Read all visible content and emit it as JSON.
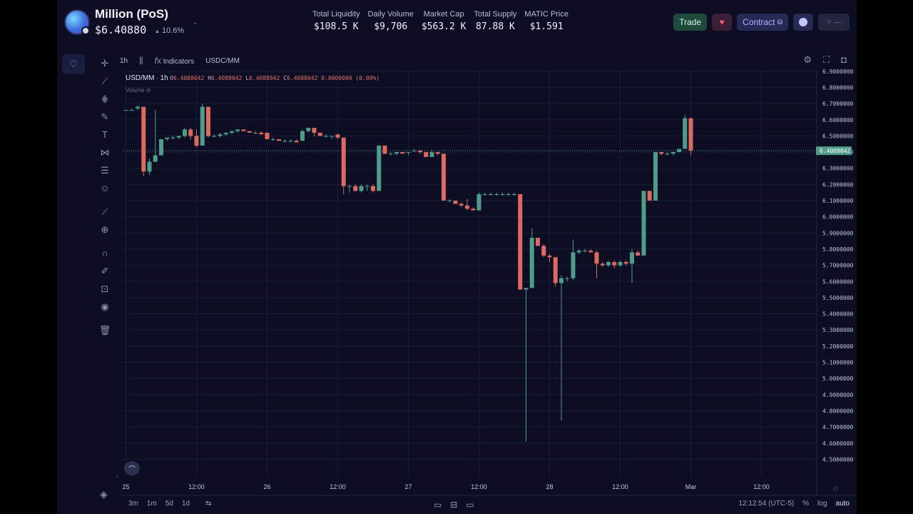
{
  "token": {
    "name": "Million (PoS)",
    "price": "$6.40880",
    "change": "10.6%",
    "change_arrow": "▲",
    "caret": "⌄"
  },
  "stats": [
    {
      "label": "Total Liquidity",
      "value": "$108.5 K"
    },
    {
      "label": "Daily Volume",
      "value": "$9,706"
    },
    {
      "label": "Market Cap",
      "value": "$563.2 K"
    },
    {
      "label": "Total Supply",
      "value": "87.88 K"
    },
    {
      "label": "MATIC Price",
      "value": "$1.591"
    }
  ],
  "header_buttons": {
    "trade": "Trade",
    "contract": "Contract",
    "contract_icon": "⧉",
    "heart": "♥",
    "more": "✧ —"
  },
  "toolbar": {
    "interval": "1h",
    "indicators": "Indicators",
    "symbol": "USDC/MM"
  },
  "legend": {
    "symbol": "USD/MM",
    "interval": "1h",
    "o": "6.4088042",
    "h": "6.4088042",
    "l": "6.4088042",
    "c": "6.4088042",
    "change": "0.0000000 (0.00%)",
    "volume": "Volume"
  },
  "bottom": {
    "ranges": [
      "3m",
      "1m",
      "5d",
      "1d"
    ],
    "time": "12:12:54 (UTC-5)",
    "pct": "%",
    "log": "log",
    "auto": "auto"
  },
  "colors": {
    "up": "#4f9c8a",
    "down": "#dc6a60",
    "grid": "#1b1d3a",
    "last_price_bg": "#4f9c8a"
  },
  "chart_data": {
    "type": "candlestick",
    "ylim": [
      4.45,
      6.95
    ],
    "y_ticks": [
      "6.9000000",
      "6.8000000",
      "6.7000000",
      "6.6000000",
      "6.5000000",
      "6.4000000",
      "6.3000000",
      "6.2000000",
      "6.1000000",
      "6.0000000",
      "5.9000000",
      "5.8000000",
      "5.7000000",
      "5.6000000",
      "5.5000000",
      "5.4000000",
      "5.3000000",
      "5.2000000",
      "5.1000000",
      "5.0000000",
      "4.9000000",
      "4.8000000",
      "4.7000000",
      "4.6000000",
      "4.5000000"
    ],
    "last_price": 6.4088042,
    "last_price_label": "6.4088042",
    "x_labels": [
      "25",
      "12:00",
      "26",
      "12:00",
      "27",
      "12:00",
      "28",
      "12:00",
      "Mar",
      "12:00"
    ],
    "x_label_times": [
      0,
      12,
      24,
      36,
      48,
      60,
      72,
      84,
      96,
      108
    ],
    "candles": [
      {
        "t": 0,
        "o": 6.66,
        "h": 6.66,
        "l": 6.66,
        "c": 6.66
      },
      {
        "t": 1,
        "o": 6.66,
        "h": 6.67,
        "l": 6.66,
        "c": 6.66
      },
      {
        "t": 2,
        "o": 6.67,
        "h": 6.69,
        "l": 6.66,
        "c": 6.68
      },
      {
        "t": 3,
        "o": 6.68,
        "h": 6.68,
        "l": 6.25,
        "c": 6.28
      },
      {
        "t": 4,
        "o": 6.28,
        "h": 6.36,
        "l": 6.26,
        "c": 6.34
      },
      {
        "t": 5,
        "o": 6.34,
        "h": 6.66,
        "l": 6.34,
        "c": 6.38
      },
      {
        "t": 6,
        "o": 6.38,
        "h": 6.48,
        "l": 6.38,
        "c": 6.48
      },
      {
        "t": 7,
        "o": 6.48,
        "h": 6.49,
        "l": 6.47,
        "c": 6.49
      },
      {
        "t": 8,
        "o": 6.49,
        "h": 6.5,
        "l": 6.48,
        "c": 6.49
      },
      {
        "t": 9,
        "o": 6.49,
        "h": 6.5,
        "l": 6.48,
        "c": 6.5
      },
      {
        "t": 10,
        "o": 6.5,
        "h": 6.55,
        "l": 6.49,
        "c": 6.54
      },
      {
        "t": 11,
        "o": 6.54,
        "h": 6.55,
        "l": 6.48,
        "c": 6.5
      },
      {
        "t": 12,
        "o": 6.5,
        "h": 6.54,
        "l": 6.43,
        "c": 6.44
      },
      {
        "t": 13,
        "o": 6.44,
        "h": 6.7,
        "l": 6.44,
        "c": 6.68
      },
      {
        "t": 14,
        "o": 6.68,
        "h": 6.68,
        "l": 6.49,
        "c": 6.5
      },
      {
        "t": 15,
        "o": 6.5,
        "h": 6.51,
        "l": 6.49,
        "c": 6.5
      },
      {
        "t": 16,
        "o": 6.5,
        "h": 6.52,
        "l": 6.49,
        "c": 6.51
      },
      {
        "t": 17,
        "o": 6.51,
        "h": 6.52,
        "l": 6.5,
        "c": 6.52
      },
      {
        "t": 18,
        "o": 6.52,
        "h": 6.53,
        "l": 6.51,
        "c": 6.53
      },
      {
        "t": 19,
        "o": 6.53,
        "h": 6.54,
        "l": 6.52,
        "c": 6.54
      },
      {
        "t": 20,
        "o": 6.54,
        "h": 6.54,
        "l": 6.53,
        "c": 6.53
      },
      {
        "t": 21,
        "o": 6.53,
        "h": 6.53,
        "l": 6.52,
        "c": 6.52
      },
      {
        "t": 22,
        "o": 6.52,
        "h": 6.53,
        "l": 6.51,
        "c": 6.52
      },
      {
        "t": 23,
        "o": 6.52,
        "h": 6.53,
        "l": 6.51,
        "c": 6.51
      },
      {
        "t": 24,
        "o": 6.52,
        "h": 6.52,
        "l": 6.48,
        "c": 6.48
      },
      {
        "t": 25,
        "o": 6.48,
        "h": 6.49,
        "l": 6.47,
        "c": 6.48
      },
      {
        "t": 26,
        "o": 6.48,
        "h": 6.48,
        "l": 6.47,
        "c": 6.47
      },
      {
        "t": 27,
        "o": 6.47,
        "h": 6.48,
        "l": 6.46,
        "c": 6.47
      },
      {
        "t": 28,
        "o": 6.47,
        "h": 6.48,
        "l": 6.46,
        "c": 6.47
      },
      {
        "t": 29,
        "o": 6.47,
        "h": 6.48,
        "l": 6.46,
        "c": 6.46
      },
      {
        "t": 30,
        "o": 6.47,
        "h": 6.54,
        "l": 6.47,
        "c": 6.53
      },
      {
        "t": 31,
        "o": 6.53,
        "h": 6.55,
        "l": 6.52,
        "c": 6.55
      },
      {
        "t": 32,
        "o": 6.55,
        "h": 6.55,
        "l": 6.5,
        "c": 6.52
      },
      {
        "t": 33,
        "o": 6.52,
        "h": 6.52,
        "l": 6.5,
        "c": 6.5
      },
      {
        "t": 34,
        "o": 6.5,
        "h": 6.51,
        "l": 6.49,
        "c": 6.5
      },
      {
        "t": 35,
        "o": 6.5,
        "h": 6.5,
        "l": 6.48,
        "c": 6.5
      },
      {
        "t": 36,
        "o": 6.51,
        "h": 6.51,
        "l": 6.48,
        "c": 6.49
      },
      {
        "t": 37,
        "o": 6.49,
        "h": 6.49,
        "l": 6.14,
        "c": 6.19
      },
      {
        "t": 38,
        "o": 6.19,
        "h": 6.2,
        "l": 6.15,
        "c": 6.19
      },
      {
        "t": 39,
        "o": 6.19,
        "h": 6.2,
        "l": 6.16,
        "c": 6.16
      },
      {
        "t": 40,
        "o": 6.16,
        "h": 6.2,
        "l": 6.15,
        "c": 6.19
      },
      {
        "t": 41,
        "o": 6.19,
        "h": 6.2,
        "l": 6.16,
        "c": 6.19
      },
      {
        "t": 42,
        "o": 6.19,
        "h": 6.2,
        "l": 6.15,
        "c": 6.16
      },
      {
        "t": 43,
        "o": 6.16,
        "h": 6.44,
        "l": 6.16,
        "c": 6.44
      },
      {
        "t": 44,
        "o": 6.44,
        "h": 6.44,
        "l": 6.39,
        "c": 6.39
      },
      {
        "t": 45,
        "o": 6.39,
        "h": 6.4,
        "l": 6.38,
        "c": 6.39
      },
      {
        "t": 46,
        "o": 6.39,
        "h": 6.4,
        "l": 6.38,
        "c": 6.4
      },
      {
        "t": 47,
        "o": 6.4,
        "h": 6.4,
        "l": 6.39,
        "c": 6.39
      },
      {
        "t": 48,
        "o": 6.4,
        "h": 6.4,
        "l": 6.38,
        "c": 6.4
      },
      {
        "t": 49,
        "o": 6.41,
        "h": 6.42,
        "l": 6.4,
        "c": 6.41
      },
      {
        "t": 50,
        "o": 6.41,
        "h": 6.41,
        "l": 6.39,
        "c": 6.4
      },
      {
        "t": 51,
        "o": 6.4,
        "h": 6.4,
        "l": 6.37,
        "c": 6.37
      },
      {
        "t": 52,
        "o": 6.37,
        "h": 6.41,
        "l": 6.37,
        "c": 6.4
      },
      {
        "t": 53,
        "o": 6.4,
        "h": 6.4,
        "l": 6.38,
        "c": 6.39
      },
      {
        "t": 54,
        "o": 6.39,
        "h": 6.39,
        "l": 6.1,
        "c": 6.1
      },
      {
        "t": 55,
        "o": 6.1,
        "h": 6.11,
        "l": 6.09,
        "c": 6.1
      },
      {
        "t": 56,
        "o": 6.1,
        "h": 6.1,
        "l": 6.08,
        "c": 6.08
      },
      {
        "t": 57,
        "o": 6.08,
        "h": 6.09,
        "l": 6.06,
        "c": 6.07
      },
      {
        "t": 58,
        "o": 6.07,
        "h": 6.11,
        "l": 6.04,
        "c": 6.05
      },
      {
        "t": 59,
        "o": 6.05,
        "h": 6.06,
        "l": 6.04,
        "c": 6.04
      },
      {
        "t": 60,
        "o": 6.04,
        "h": 6.15,
        "l": 6.04,
        "c": 6.14
      },
      {
        "t": 61,
        "o": 6.14,
        "h": 6.15,
        "l": 6.13,
        "c": 6.14
      },
      {
        "t": 62,
        "o": 6.14,
        "h": 6.15,
        "l": 6.13,
        "c": 6.14
      },
      {
        "t": 63,
        "o": 6.14,
        "h": 6.15,
        "l": 6.13,
        "c": 6.14
      },
      {
        "t": 64,
        "o": 6.14,
        "h": 6.15,
        "l": 6.13,
        "c": 6.14
      },
      {
        "t": 65,
        "o": 6.14,
        "h": 6.15,
        "l": 6.13,
        "c": 6.14
      },
      {
        "t": 66,
        "o": 6.14,
        "h": 6.15,
        "l": 6.13,
        "c": 6.14
      },
      {
        "t": 67,
        "o": 6.14,
        "h": 6.14,
        "l": 5.55,
        "c": 5.55
      },
      {
        "t": 68,
        "o": 5.55,
        "h": 5.55,
        "l": 4.61,
        "c": 5.56
      },
      {
        "t": 69,
        "o": 5.56,
        "h": 5.93,
        "l": 5.56,
        "c": 5.87
      },
      {
        "t": 70,
        "o": 5.87,
        "h": 5.87,
        "l": 5.82,
        "c": 5.82
      },
      {
        "t": 71,
        "o": 5.82,
        "h": 5.83,
        "l": 5.75,
        "c": 5.76
      },
      {
        "t": 72,
        "o": 5.76,
        "h": 5.77,
        "l": 5.72,
        "c": 5.75
      },
      {
        "t": 73,
        "o": 5.75,
        "h": 5.75,
        "l": 5.57,
        "c": 5.59
      },
      {
        "t": 74,
        "o": 5.59,
        "h": 5.64,
        "l": 4.74,
        "c": 5.62
      },
      {
        "t": 75,
        "o": 5.62,
        "h": 5.63,
        "l": 5.6,
        "c": 5.62
      },
      {
        "t": 76,
        "o": 5.62,
        "h": 5.86,
        "l": 5.61,
        "c": 5.78
      },
      {
        "t": 77,
        "o": 5.78,
        "h": 5.8,
        "l": 5.77,
        "c": 5.79
      },
      {
        "t": 78,
        "o": 5.79,
        "h": 5.8,
        "l": 5.78,
        "c": 5.79
      },
      {
        "t": 79,
        "o": 5.79,
        "h": 5.8,
        "l": 5.78,
        "c": 5.78
      },
      {
        "t": 80,
        "o": 5.78,
        "h": 5.79,
        "l": 5.62,
        "c": 5.71
      },
      {
        "t": 81,
        "o": 5.71,
        "h": 5.72,
        "l": 5.69,
        "c": 5.7
      },
      {
        "t": 82,
        "o": 5.7,
        "h": 5.73,
        "l": 5.69,
        "c": 5.72
      },
      {
        "t": 83,
        "o": 5.72,
        "h": 5.73,
        "l": 5.68,
        "c": 5.7
      },
      {
        "t": 84,
        "o": 5.7,
        "h": 5.73,
        "l": 5.69,
        "c": 5.72
      },
      {
        "t": 85,
        "o": 5.72,
        "h": 5.73,
        "l": 5.7,
        "c": 5.71
      },
      {
        "t": 86,
        "o": 5.71,
        "h": 5.8,
        "l": 5.59,
        "c": 5.78
      },
      {
        "t": 87,
        "o": 5.78,
        "h": 5.79,
        "l": 5.76,
        "c": 5.76
      },
      {
        "t": 88,
        "o": 5.76,
        "h": 6.16,
        "l": 5.76,
        "c": 6.16
      },
      {
        "t": 89,
        "o": 6.16,
        "h": 6.16,
        "l": 6.1,
        "c": 6.1
      },
      {
        "t": 90,
        "o": 6.1,
        "h": 6.4,
        "l": 6.1,
        "c": 6.4
      },
      {
        "t": 91,
        "o": 6.4,
        "h": 6.4,
        "l": 6.38,
        "c": 6.39
      },
      {
        "t": 92,
        "o": 6.39,
        "h": 6.4,
        "l": 6.38,
        "c": 6.39
      },
      {
        "t": 93,
        "o": 6.39,
        "h": 6.4,
        "l": 6.38,
        "c": 6.4
      },
      {
        "t": 94,
        "o": 6.4,
        "h": 6.42,
        "l": 6.4,
        "c": 6.42
      },
      {
        "t": 95,
        "o": 6.42,
        "h": 6.63,
        "l": 6.42,
        "c": 6.61
      },
      {
        "t": 96,
        "o": 6.61,
        "h": 6.61,
        "l": 6.38,
        "c": 6.41
      }
    ]
  }
}
